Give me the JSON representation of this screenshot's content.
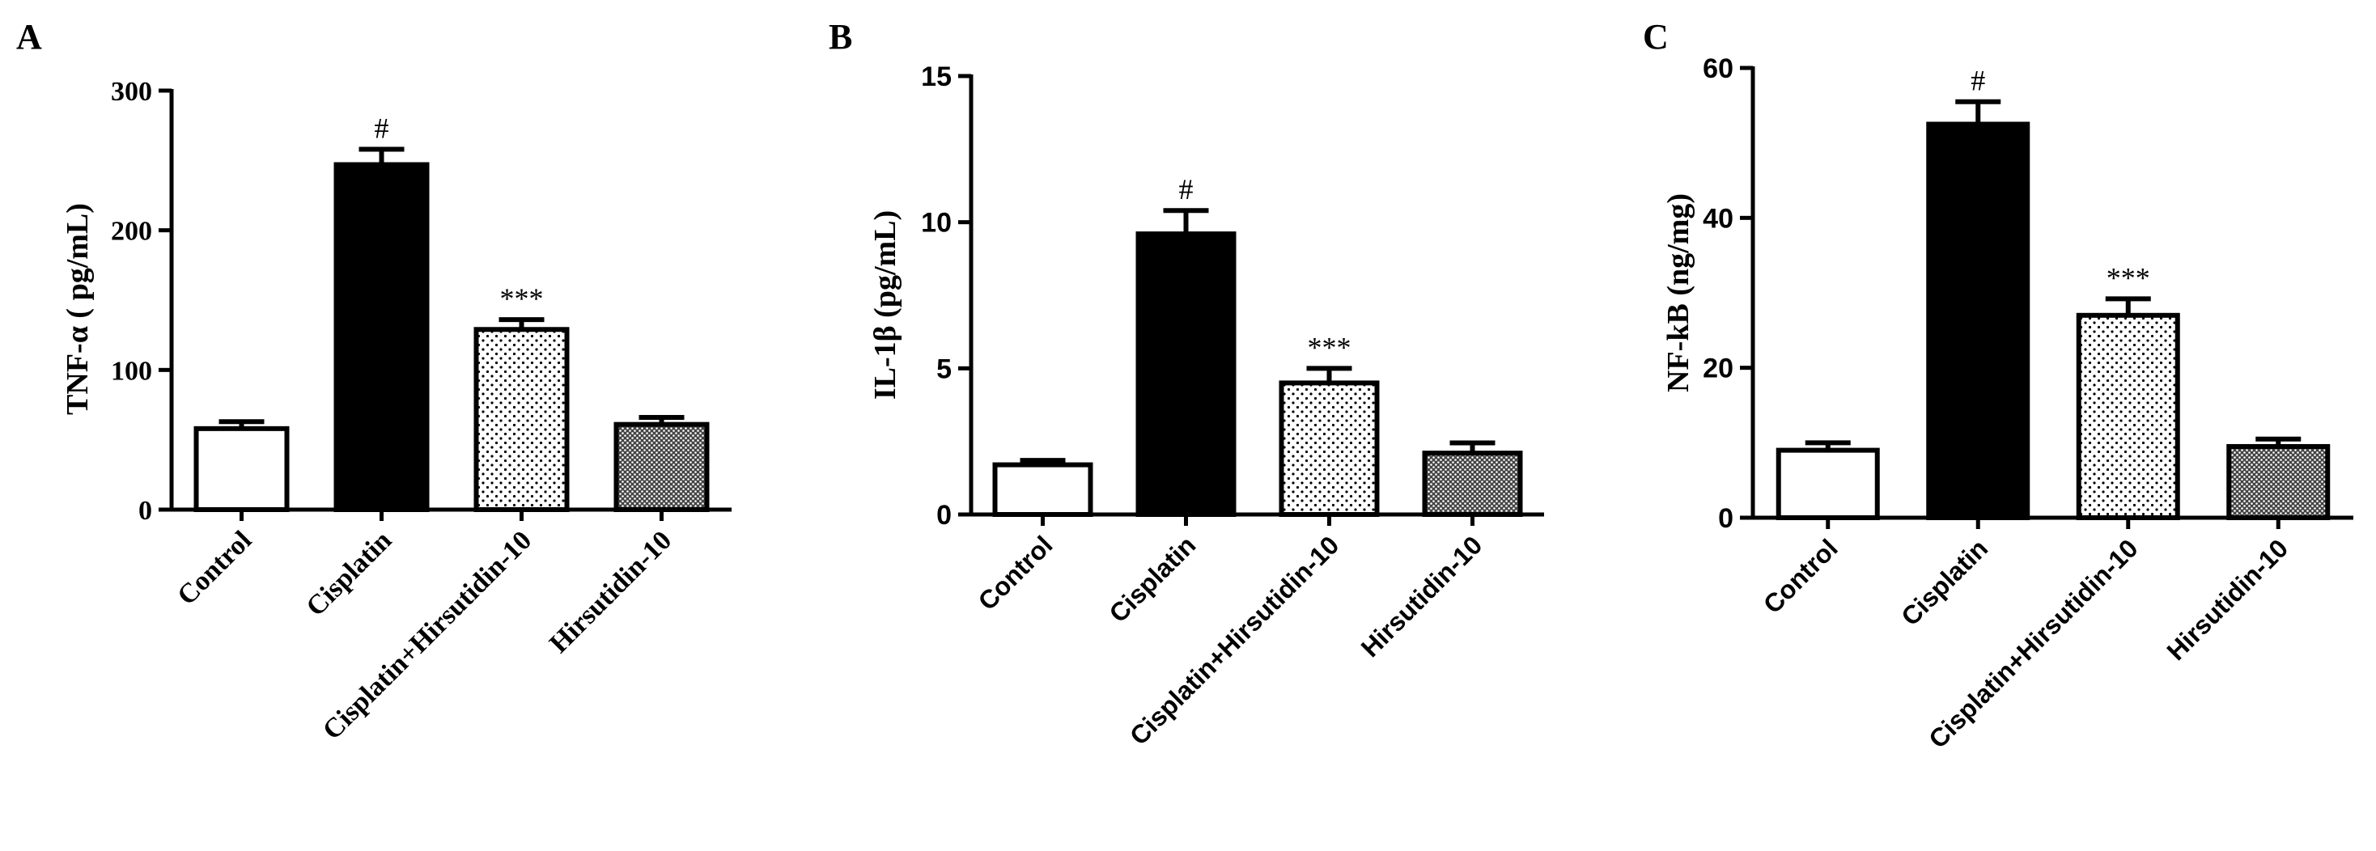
{
  "chart_data": [
    {
      "panel": "A",
      "type": "bar",
      "title": "",
      "xlabel": "",
      "ylabel": "TNF-α ( pg/mL)",
      "categories": [
        "Control",
        "Cisplatin",
        "Cisplatin+Hirsutidin-10",
        "Hirsutidin-10"
      ],
      "values": [
        58,
        247,
        129,
        61
      ],
      "errors": [
        5,
        11,
        7,
        5
      ],
      "annotations": [
        "",
        "#",
        "***",
        ""
      ],
      "ylim": [
        0,
        300
      ],
      "yticks": [
        0,
        100,
        200,
        300
      ],
      "fills": [
        "white",
        "black",
        "dots",
        "dense"
      ]
    },
    {
      "panel": "B",
      "type": "bar",
      "title": "",
      "xlabel": "",
      "ylabel": "IL-1β (pg/mL)",
      "categories": [
        "Control",
        "Cisplatin",
        "Cisplatin+Hirsutidin-10",
        "Hirsutidin-10"
      ],
      "values": [
        1.7,
        9.6,
        4.5,
        2.1
      ],
      "errors": [
        0.15,
        0.8,
        0.5,
        0.35
      ],
      "annotations": [
        "",
        "#",
        "***",
        ""
      ],
      "ylim": [
        0,
        15
      ],
      "yticks": [
        0,
        5,
        10,
        15
      ],
      "fills": [
        "white",
        "black",
        "dots",
        "dense"
      ]
    },
    {
      "panel": "C",
      "type": "bar",
      "title": "",
      "xlabel": "",
      "ylabel": "NF-kB (ng/mg)",
      "categories": [
        "Control",
        "Cisplatin",
        "Cisplatin+Hirsutidin-10",
        "Hirsutidin-10"
      ],
      "values": [
        9,
        52.5,
        27,
        9.5
      ],
      "errors": [
        1.0,
        3.0,
        2.2,
        1.0
      ],
      "annotations": [
        "",
        "#",
        "***",
        ""
      ],
      "ylim": [
        0,
        60
      ],
      "yticks": [
        0,
        20,
        40,
        60
      ],
      "fills": [
        "white",
        "black",
        "dots",
        "dense"
      ]
    }
  ],
  "colors": {
    "ink": "#000000",
    "background": "#ffffff"
  }
}
